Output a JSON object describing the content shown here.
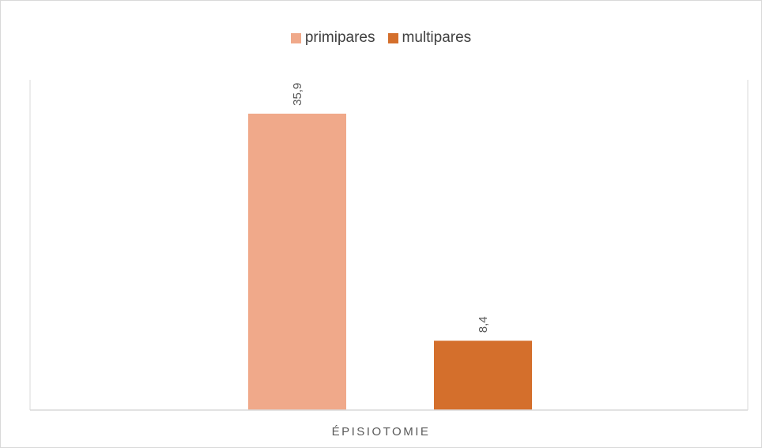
{
  "chart_data": {
    "type": "bar",
    "categories": [
      "ÉPISIOTOMIE"
    ],
    "series": [
      {
        "name": "primipares",
        "values": [
          35.9
        ],
        "label": "35,9",
        "color": "#F0A98A"
      },
      {
        "name": "multipares",
        "values": [
          8.4
        ],
        "label": "8,4",
        "color": "#D46F2C"
      }
    ],
    "ylim": [
      0,
      40
    ],
    "legend_position": "top",
    "grid": false,
    "data_labels": "rotated vertical, above bars"
  },
  "colors": {
    "axis": "#d9d9d9",
    "data_label": "#595959"
  }
}
